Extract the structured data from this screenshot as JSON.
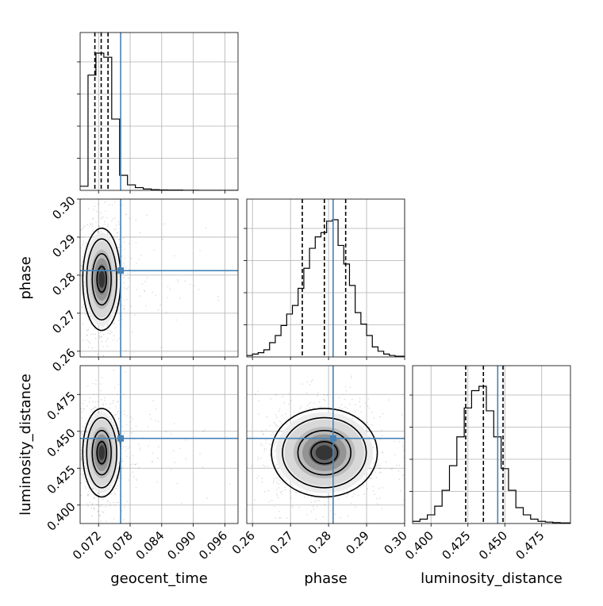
{
  "chart_data": {
    "type": "corner",
    "parameters": [
      {
        "name": "geocent_time",
        "label": "geocent_time",
        "range": [
          0.0685,
          0.0985
        ],
        "ticks": [
          "0.072",
          "0.078",
          "0.084",
          "0.090",
          "0.096"
        ],
        "tick_values": [
          0.072,
          0.078,
          0.084,
          0.09,
          0.096
        ],
        "injection": 0.0762,
        "quantiles": [
          0.0713,
          0.0725,
          0.0738
        ]
      },
      {
        "name": "phase",
        "label": "phase",
        "range": [
          0.2585,
          0.3
        ],
        "ticks": [
          "0.26",
          "0.27",
          "0.28",
          "0.29",
          "0.30"
        ],
        "tick_values": [
          0.26,
          0.27,
          0.28,
          0.29,
          0.3
        ],
        "injection": 0.2812,
        "quantiles": [
          0.2731,
          0.2789,
          0.2845
        ]
      },
      {
        "name": "luminosity_distance",
        "label": "luminosity_distance",
        "range": [
          0.3875,
          0.4945
        ],
        "ticks": [
          "0.400",
          "0.425",
          "0.450",
          "0.475"
        ],
        "tick_values": [
          0.4,
          0.425,
          0.45,
          0.475
        ],
        "injection": 0.4452,
        "quantiles": [
          0.4235,
          0.4355,
          0.4488
        ]
      }
    ],
    "histograms": [
      {
        "parameter": "geocent_time",
        "bin_edges": [
          0.0685,
          0.07,
          0.0715,
          0.073,
          0.0745,
          0.076,
          0.0775,
          0.079,
          0.0805,
          0.082,
          0.0835,
          0.085,
          0.0865,
          0.088,
          0.0895,
          0.091,
          0.0925,
          0.094,
          0.0955,
          0.097,
          0.0985
        ],
        "counts": [
          30,
          840,
          1000,
          970,
          520,
          110,
          40,
          20,
          10,
          5,
          3,
          2,
          2,
          1,
          1,
          0,
          0,
          0,
          0,
          0
        ]
      },
      {
        "parameter": "phase",
        "bin_edges": [
          0.2585,
          0.26,
          0.2615,
          0.263,
          0.2645,
          0.266,
          0.2675,
          0.269,
          0.2705,
          0.272,
          0.2735,
          0.275,
          0.2765,
          0.278,
          0.2795,
          0.281,
          0.2825,
          0.284,
          0.2855,
          0.287,
          0.2885,
          0.29,
          0.2915,
          0.293,
          0.2945,
          0.296,
          0.2975,
          0.3
        ],
        "counts": [
          10,
          20,
          30,
          50,
          100,
          150,
          220,
          300,
          360,
          480,
          620,
          760,
          840,
          870,
          950,
          960,
          780,
          650,
          500,
          310,
          230,
          150,
          70,
          40,
          20,
          10,
          5
        ]
      },
      {
        "parameter": "luminosity_distance",
        "bin_edges": [
          0.3875,
          0.3925,
          0.3975,
          0.4025,
          0.4075,
          0.4125,
          0.4175,
          0.4225,
          0.4275,
          0.4325,
          0.4375,
          0.4425,
          0.4475,
          0.4525,
          0.4575,
          0.4625,
          0.4675,
          0.4725,
          0.4775,
          0.4825,
          0.4875,
          0.4945
        ],
        "counts": [
          15,
          30,
          60,
          120,
          230,
          400,
          600,
          800,
          920,
          950,
          780,
          600,
          380,
          230,
          110,
          60,
          30,
          15,
          10,
          6,
          4
        ]
      }
    ],
    "pairs": [
      {
        "x": "geocent_time",
        "y": "phase",
        "mean": [
          0.0726,
          0.2789
        ],
        "sd": [
          0.0015,
          0.0056
        ],
        "injection": [
          0.0762,
          0.2812
        ]
      },
      {
        "x": "geocent_time",
        "y": "luminosity_distance",
        "mean": [
          0.0726,
          0.4355
        ],
        "sd": [
          0.0015,
          0.0125
        ],
        "injection": [
          0.0762,
          0.4452
        ]
      },
      {
        "x": "phase",
        "y": "luminosity_distance",
        "mean": [
          0.2789,
          0.4355
        ],
        "sd": [
          0.0058,
          0.0125
        ],
        "injection": [
          0.2812,
          0.4452
        ]
      }
    ],
    "injection_color": "#4682b4",
    "grid": true,
    "legend": "none"
  }
}
